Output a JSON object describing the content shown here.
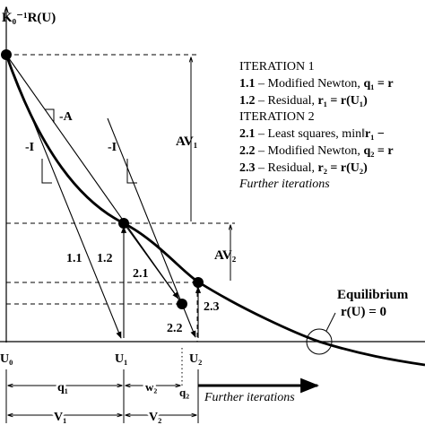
{
  "y_axis_label": "K₀⁻¹R(U)",
  "legend": {
    "lines": [
      {
        "num": "",
        "text": "ITERATION 1"
      },
      {
        "num": "1.1",
        "text": " – Modified Newton, ",
        "eq": "q₁ = r"
      },
      {
        "num": "1.2",
        "text": " – Residual, ",
        "eq": "r₁ = r(U₁)"
      },
      {
        "num": "",
        "text": "ITERATION 2"
      },
      {
        "num": "2.1",
        "text": " – Least squares, min‖",
        "eq": "r₁ −"
      },
      {
        "num": "2.2",
        "text": " – Modified Newton, ",
        "eq": "q₂ = r"
      },
      {
        "num": "2.3",
        "text": " – Residual, ",
        "eq": "r₂ = r(U₂)"
      },
      {
        "num": "",
        "text": "Further iterations"
      }
    ]
  },
  "step_labels": {
    "s11": "1.1",
    "s12": "1.2",
    "s21": "2.1",
    "s22": "2.2",
    "s23": "2.3"
  },
  "slope_labels": {
    "neg_a": "-A",
    "neg_i_1": "-I",
    "neg_i_2": "-I"
  },
  "dimension_labels": {
    "av1": "AV₁",
    "av2": "AV₂",
    "q1": "q₁",
    "w2": "w₂",
    "q2": "q₂",
    "v1": "V₁",
    "v2": "V₂"
  },
  "axis_ticks": {
    "u0": "U₀",
    "u1": "U₁",
    "u2": "U₂"
  },
  "equilibrium": {
    "title": "Equilibrium",
    "condition": "r(U) = 0"
  },
  "further_iterations_arrow": "Further iterations"
}
